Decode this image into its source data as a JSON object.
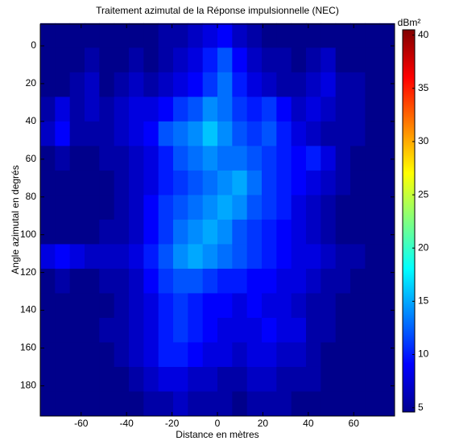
{
  "chart_data": {
    "type": "heatmap",
    "title": "Traitement azimutal de la Réponse impulsionnelle  (NEC)",
    "x_label": "Distance en mètres",
    "y_label": "Angle azimutal en degrés",
    "colorbar_label": "dBm²",
    "colormap": "jet",
    "y_reversed": true,
    "x": [
      -74.75,
      -68.25,
      -61.75,
      -55.25,
      -48.75,
      -42.25,
      -35.75,
      -29.25,
      -22.75,
      -16.25,
      -9.75,
      -3.25,
      3.25,
      9.75,
      16.25,
      22.75,
      29.25,
      35.75,
      42.25,
      48.75,
      55.25,
      61.75,
      68.25,
      74.75
    ],
    "y": [
      -5.5,
      7.5,
      20.5,
      33.5,
      46.5,
      59.5,
      72.5,
      85.5,
      98.5,
      111.5,
      124.5,
      137.5,
      150.5,
      163.5,
      176.5,
      189.5
    ],
    "z": [
      [
        5,
        5,
        5,
        5,
        5,
        5,
        5,
        5,
        6,
        6,
        7,
        8,
        9,
        7,
        6,
        5,
        5,
        5,
        5,
        5,
        5,
        5,
        5,
        5
      ],
      [
        5,
        5,
        5,
        6,
        5,
        5,
        6,
        5,
        6,
        7,
        8,
        10,
        12,
        9,
        7,
        6,
        6,
        5,
        6,
        7,
        5,
        5,
        5,
        5
      ],
      [
        5,
        5,
        6,
        7,
        5,
        6,
        7,
        6,
        7,
        8,
        9,
        11,
        13,
        10,
        8,
        7,
        6,
        6,
        7,
        8,
        6,
        6,
        5,
        5
      ],
      [
        6,
        8,
        6,
        7,
        6,
        7,
        8,
        8,
        9,
        11,
        12,
        14,
        13,
        11,
        10,
        11,
        9,
        7,
        8,
        7,
        6,
        6,
        5,
        5
      ],
      [
        7,
        9,
        6,
        6,
        6,
        7,
        8,
        9,
        12,
        13,
        14,
        16,
        14,
        12,
        11,
        12,
        10,
        8,
        7,
        6,
        6,
        6,
        5,
        5
      ],
      [
        5,
        6,
        5,
        5,
        6,
        6,
        7,
        8,
        10,
        12,
        13,
        14,
        13,
        13,
        12,
        11,
        10,
        9,
        10,
        8,
        6,
        5,
        5,
        5
      ],
      [
        5,
        5,
        5,
        5,
        5,
        6,
        7,
        8,
        10,
        11,
        12,
        13,
        14,
        15,
        13,
        11,
        10,
        9,
        8,
        7,
        6,
        5,
        5,
        5
      ],
      [
        5,
        5,
        5,
        5,
        5,
        6,
        7,
        9,
        11,
        12,
        13,
        14,
        15,
        14,
        12,
        11,
        10,
        8,
        7,
        6,
        5,
        5,
        5,
        5
      ],
      [
        5,
        5,
        5,
        5,
        6,
        6,
        7,
        9,
        11,
        13,
        14,
        15,
        14,
        12,
        11,
        10,
        9,
        8,
        7,
        6,
        5,
        5,
        5,
        5
      ],
      [
        8,
        9,
        8,
        7,
        7,
        7,
        8,
        10,
        12,
        14,
        15,
        14,
        13,
        12,
        11,
        10,
        9,
        8,
        8,
        7,
        6,
        6,
        5,
        5
      ],
      [
        5,
        6,
        5,
        5,
        6,
        6,
        7,
        9,
        11,
        12,
        12,
        11,
        10,
        10,
        9,
        9,
        8,
        8,
        7,
        6,
        6,
        5,
        5,
        5
      ],
      [
        5,
        5,
        5,
        5,
        5,
        6,
        7,
        8,
        10,
        11,
        10,
        9,
        9,
        8,
        9,
        8,
        8,
        7,
        6,
        6,
        5,
        5,
        5,
        5
      ],
      [
        5,
        5,
        5,
        5,
        6,
        6,
        7,
        8,
        10,
        11,
        10,
        9,
        8,
        8,
        8,
        9,
        8,
        8,
        6,
        6,
        5,
        5,
        5,
        5
      ],
      [
        5,
        5,
        5,
        5,
        5,
        6,
        7,
        8,
        10,
        10,
        9,
        8,
        8,
        7,
        8,
        8,
        7,
        7,
        6,
        5,
        5,
        5,
        5,
        5
      ],
      [
        5,
        5,
        5,
        5,
        5,
        5,
        6,
        7,
        8,
        8,
        7,
        7,
        6,
        6,
        7,
        7,
        6,
        6,
        6,
        5,
        5,
        5,
        5,
        5
      ],
      [
        5,
        5,
        5,
        5,
        5,
        5,
        5,
        6,
        6,
        7,
        6,
        6,
        6,
        5,
        6,
        6,
        6,
        5,
        5,
        5,
        5,
        5,
        5,
        5
      ]
    ],
    "xlim": [
      -78,
      78
    ],
    "ylim": [
      -11.5,
      196
    ],
    "clim": [
      4.6,
      40.5
    ],
    "xticks": [
      -60,
      -40,
      -20,
      0,
      20,
      40,
      60
    ],
    "yticks": [
      0,
      20,
      40,
      60,
      80,
      100,
      120,
      140,
      160,
      180
    ],
    "cticks": [
      5,
      10,
      15,
      20,
      25,
      30,
      35,
      40
    ]
  }
}
